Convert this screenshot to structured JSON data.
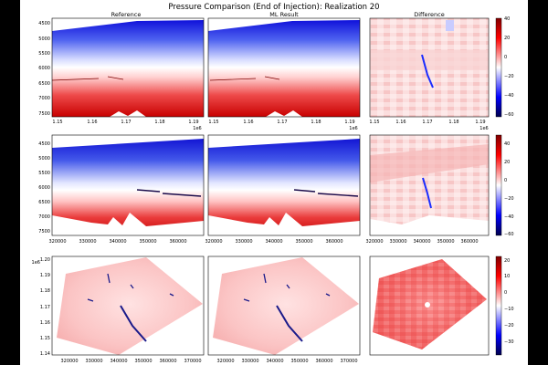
{
  "figure": {
    "title": "Pressure Comparison (End of Injection): Realization 20",
    "column_titles": [
      "Reference",
      "ML Result",
      "Difference"
    ],
    "background": "#000000"
  },
  "colors": {
    "pressure_low": "#0000ff",
    "pressure_mid": "#ffffff",
    "pressure_high": "#d40000",
    "diff_low": "#000066",
    "diff_mid": "#ffffff",
    "diff_high": "#cc0000",
    "void": "#ffffff"
  },
  "chart_data": [
    {
      "row": 1,
      "type": "heatmap",
      "view": "cross-section",
      "panels": [
        "Reference",
        "ML Result",
        "Difference"
      ],
      "xlim": [
        1.145,
        1.195
      ],
      "x_ticks": [
        "1.15",
        "1.16",
        "1.17",
        "1.18",
        "1.19"
      ],
      "x_offset_label": "1e6",
      "ylim": [
        7650,
        4350
      ],
      "y_ticks": [
        "4500",
        "5000",
        "5500",
        "6000",
        "6500",
        "7000",
        "7500"
      ],
      "pressure_colorbar": null,
      "difference_colorbar": {
        "range": [
          -60,
          42
        ],
        "ticks": [
          "40",
          "20",
          "0",
          "−20",
          "−40",
          "−60"
        ]
      }
    },
    {
      "row": 2,
      "type": "heatmap",
      "view": "cross-section",
      "panels": [
        "Reference",
        "ML Result",
        "Difference"
      ],
      "xlim": [
        318000,
        368000
      ],
      "x_ticks": [
        "320000",
        "330000",
        "340000",
        "350000",
        "360000"
      ],
      "ylim": [
        7700,
        4350
      ],
      "y_ticks": [
        "4500",
        "5000",
        "5500",
        "6000",
        "6500",
        "7000",
        "7500"
      ],
      "difference_colorbar": {
        "range": [
          -62,
          46
        ],
        "ticks": [
          "40",
          "20",
          "0",
          "−20",
          "−40",
          "−60"
        ]
      }
    },
    {
      "row": 3,
      "type": "heatmap",
      "view": "map",
      "panels": [
        "Reference",
        "ML Result",
        "Difference"
      ],
      "xlim": [
        312000,
        374000
      ],
      "x_ticks": [
        "320000",
        "330000",
        "340000",
        "350000",
        "360000",
        "370000"
      ],
      "ylim": [
        1.137,
        1.202
      ],
      "y_ticks": [
        "1.20",
        "1.19",
        "1.18",
        "1.17",
        "1.16",
        "1.15",
        "1.14"
      ],
      "y_offset_label": "1e6",
      "difference_colorbar": {
        "range": [
          -38,
          22
        ],
        "ticks": [
          "20",
          "10",
          "0",
          "−10",
          "−20",
          "−30"
        ]
      }
    }
  ]
}
